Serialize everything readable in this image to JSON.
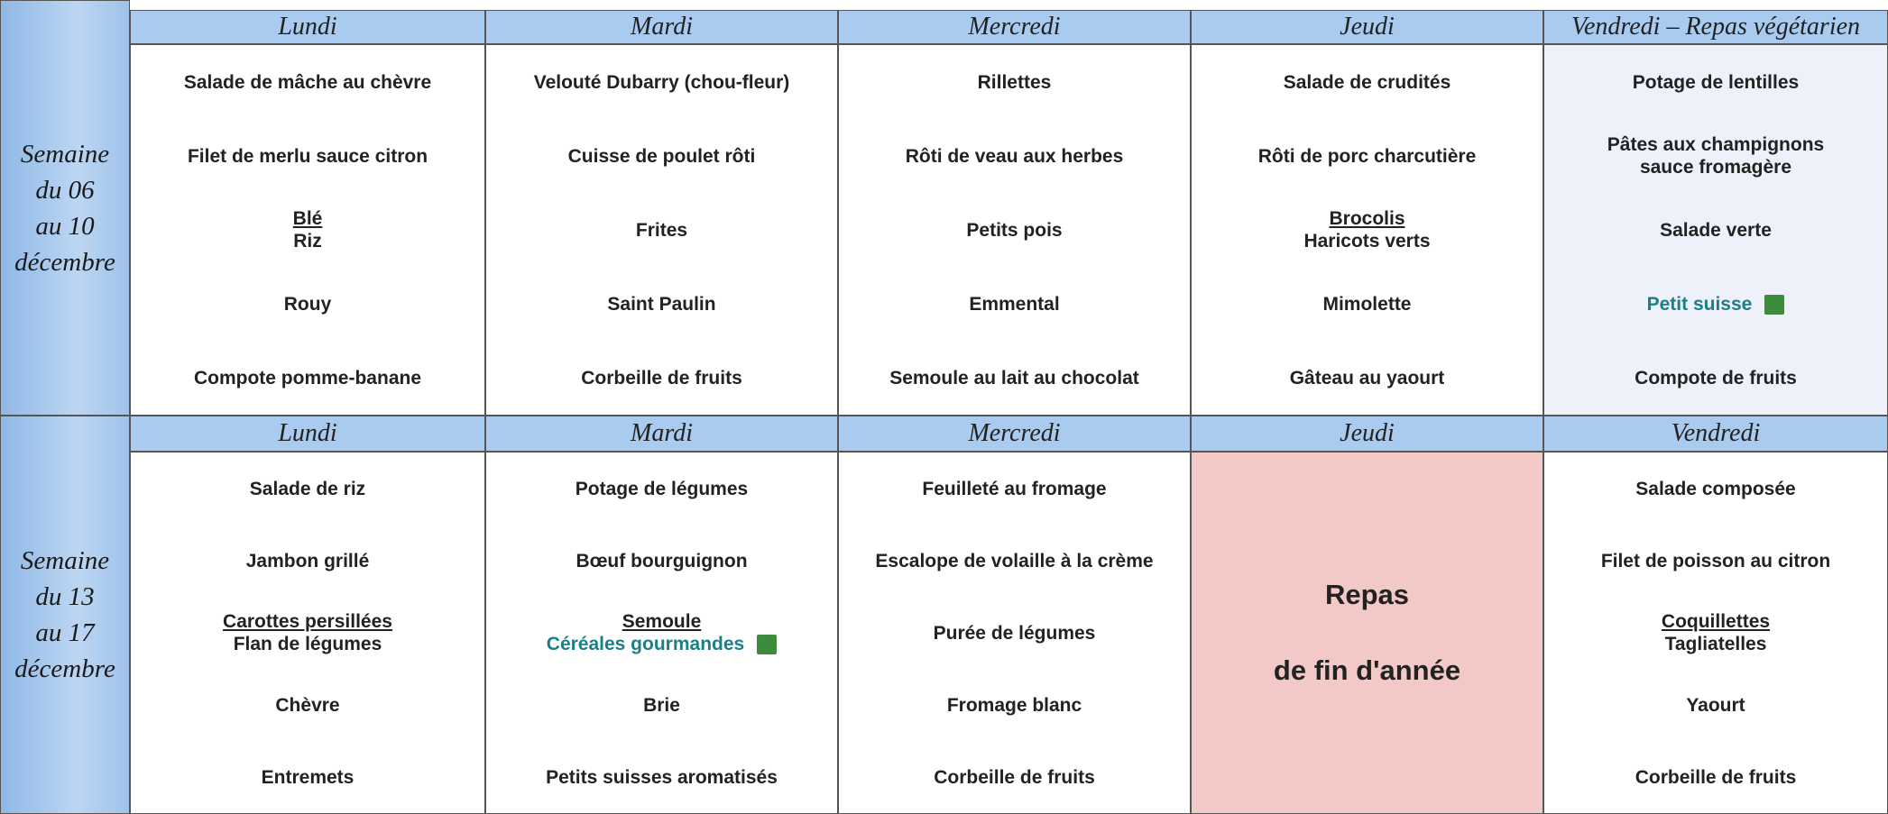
{
  "weeks": [
    {
      "label": [
        "Semaine",
        "du 06",
        "au 10",
        "décembre"
      ],
      "days": [
        {
          "name": "Lundi",
          "slots": [
            [
              "Salade de mâche au chèvre"
            ],
            [
              "Filet de merlu sauce citron"
            ],
            [
              {
                "text": "Blé",
                "style": "underline"
              },
              "Riz"
            ],
            [
              "Rouy"
            ],
            [
              "Compote pomme-banane"
            ]
          ]
        },
        {
          "name": "Mardi",
          "slots": [
            [
              "Velouté Dubarry (chou-fleur)"
            ],
            [
              "Cuisse de poulet rôti"
            ],
            [
              "Frites"
            ],
            [
              "Saint Paulin"
            ],
            [
              "Corbeille de fruits"
            ]
          ]
        },
        {
          "name": "Mercredi",
          "slots": [
            [
              "Rillettes"
            ],
            [
              "Rôti de veau aux herbes"
            ],
            [
              "Petits pois"
            ],
            [
              "Emmental"
            ],
            [
              "Semoule au lait au chocolat"
            ]
          ]
        },
        {
          "name": "Jeudi",
          "slots": [
            [
              "Salade de crudités"
            ],
            [
              "Rôti de porc charcutière"
            ],
            [
              {
                "text": "Brocolis",
                "style": "underline"
              },
              "Haricots verts"
            ],
            [
              "Mimolette"
            ],
            [
              "Gâteau au yaourt"
            ]
          ]
        },
        {
          "name": "Vendredi – Repas végétarien",
          "tint": true,
          "slots": [
            [
              "Potage de lentilles"
            ],
            [
              "Pâtes aux champignons",
              "sauce fromagère"
            ],
            [
              "Salade verte"
            ],
            [
              {
                "text": "Petit suisse",
                "style": "bio"
              }
            ],
            [
              "Compote de fruits"
            ]
          ]
        }
      ]
    },
    {
      "label": [
        "Semaine",
        "du 13",
        "au 17",
        "décembre"
      ],
      "days": [
        {
          "name": "Lundi",
          "slots": [
            [
              "Salade de riz"
            ],
            [
              "Jambon grillé"
            ],
            [
              {
                "text": "Carottes persillées",
                "style": "underline"
              },
              "Flan de légumes"
            ],
            [
              "Chèvre"
            ],
            [
              "Entremets"
            ]
          ]
        },
        {
          "name": "Mardi",
          "slots": [
            [
              "Potage de légumes"
            ],
            [
              "Bœuf bourguignon"
            ],
            [
              {
                "text": "Semoule",
                "style": "underline"
              },
              {
                "text": "Céréales gourmandes",
                "style": "bio"
              }
            ],
            [
              "Brie"
            ],
            [
              "Petits suisses aromatisés"
            ]
          ]
        },
        {
          "name": "Mercredi",
          "slots": [
            [
              "Feuilleté au fromage"
            ],
            [
              "Escalope de volaille à la crème"
            ],
            [
              "Purée de légumes"
            ],
            [
              "Fromage blanc"
            ],
            [
              "Corbeille de fruits"
            ]
          ]
        },
        {
          "name": "Jeudi",
          "special": [
            "Repas",
            "de fin d'année"
          ]
        },
        {
          "name": "Vendredi",
          "slots": [
            [
              "Salade composée"
            ],
            [
              "Filet de poisson au citron"
            ],
            [
              {
                "text": "Coquillettes",
                "style": "underline"
              },
              "Tagliatelles"
            ],
            [
              "Yaourt"
            ],
            [
              "Corbeille de fruits"
            ]
          ]
        }
      ]
    }
  ]
}
